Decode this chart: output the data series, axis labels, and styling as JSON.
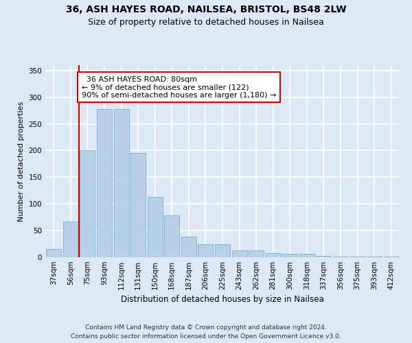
{
  "title1": "36, ASH HAYES ROAD, NAILSEA, BRISTOL, BS48 2LW",
  "title2": "Size of property relative to detached houses in Nailsea",
  "xlabel": "Distribution of detached houses by size in Nailsea",
  "ylabel": "Number of detached properties",
  "footnote": "Contains HM Land Registry data © Crown copyright and database right 2024.\nContains public sector information licensed under the Open Government Licence v3.0.",
  "bins": [
    "37sqm",
    "56sqm",
    "75sqm",
    "93sqm",
    "112sqm",
    "131sqm",
    "150sqm",
    "168sqm",
    "187sqm",
    "206sqm",
    "225sqm",
    "243sqm",
    "262sqm",
    "281sqm",
    "300sqm",
    "318sqm",
    "337sqm",
    "356sqm",
    "375sqm",
    "393sqm",
    "412sqm"
  ],
  "values": [
    15,
    67,
    200,
    278,
    278,
    195,
    113,
    78,
    38,
    24,
    24,
    13,
    13,
    8,
    6,
    6,
    3,
    1,
    1,
    1,
    1
  ],
  "bar_color": "#b8d0e8",
  "bar_edge_color": "#7aadd4",
  "vline_x": 1.5,
  "vline_color": "#cc0000",
  "annotation_text": "  36 ASH HAYES ROAD: 80sqm\n← 9% of detached houses are smaller (122)\n90% of semi-detached houses are larger (1,180) →",
  "annotation_box_color": "#ffffff",
  "annotation_box_edge": "#cc0000",
  "ylim": [
    0,
    360
  ],
  "yticks": [
    0,
    50,
    100,
    150,
    200,
    250,
    300,
    350
  ],
  "fig_background": "#dce8f5",
  "axes_background": "#dce8f5",
  "grid_color": "#ffffff",
  "title1_fontsize": 10,
  "title2_fontsize": 9,
  "xlabel_fontsize": 8.5,
  "ylabel_fontsize": 8,
  "tick_fontsize": 7.5,
  "annotation_fontsize": 8,
  "footnote_fontsize": 6.5
}
